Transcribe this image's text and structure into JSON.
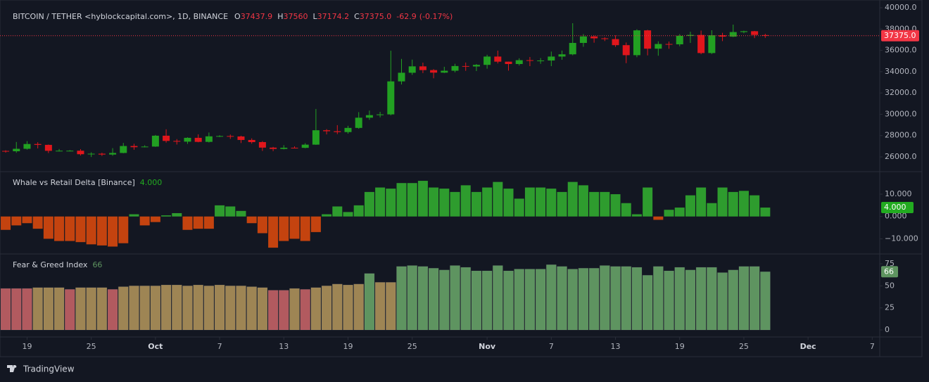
{
  "chart_data": [
    {
      "type": "candlestick",
      "title": "BITCOIN / TETHER <hyblockcapital.com>, 1D, BINANCE",
      "ohlc_letters": [
        "O",
        "H",
        "L",
        "C"
      ],
      "close_label": "37375.0",
      "change": -62.9,
      "change_pct_label": "(-0.17%)",
      "up_color": "#22a022",
      "down_color": "#e0161c",
      "last_color": "#f23645",
      "xlim": [
        -0.53,
        81.7
      ],
      "xticks": [
        {
          "value": 2,
          "label": "19"
        },
        {
          "value": 8,
          "label": "25"
        },
        {
          "value": 14,
          "label": "Oct"
        },
        {
          "value": 20,
          "label": "7"
        },
        {
          "value": 26,
          "label": "13"
        },
        {
          "value": 32,
          "label": "19"
        },
        {
          "value": 38,
          "label": "25"
        },
        {
          "value": 45,
          "label": "Nov"
        },
        {
          "value": 51,
          "label": "7"
        },
        {
          "value": 57,
          "label": "13"
        },
        {
          "value": 63,
          "label": "19"
        },
        {
          "value": 69,
          "label": "25"
        },
        {
          "value": 75,
          "label": "Dec"
        },
        {
          "value": 81,
          "label": "7"
        }
      ],
      "ylim": [
        24680,
        40730
      ],
      "yticks": [
        {
          "value": 40000,
          "label": "40000.0"
        },
        {
          "value": 38000,
          "label": "38000.0"
        },
        {
          "value": 36000,
          "label": "36000.0"
        },
        {
          "value": 34000,
          "label": "34000.0"
        },
        {
          "value": 32000,
          "label": "32000.0"
        },
        {
          "value": 30000,
          "label": "30000.0"
        },
        {
          "value": 28000,
          "label": "28000.0"
        },
        {
          "value": 26000,
          "label": "26000.0"
        }
      ],
      "open": [
        26560,
        26530,
        26760,
        27210,
        27130,
        26570,
        26580,
        26580,
        26250,
        26300,
        26220,
        26370,
        27020,
        26910,
        26970,
        27990,
        27500,
        27430,
        27790,
        27410,
        27930,
        27960,
        27920,
        27590,
        27390,
        26870,
        26750,
        26860,
        26850,
        27150,
        28500,
        28410,
        28330,
        28720,
        29680,
        29920,
        29990,
        33090,
        33900,
        34500,
        34150,
        33910,
        34090,
        34530,
        34490,
        34640,
        35420,
        34940,
        34720,
        35080,
        35040,
        35050,
        35420,
        35630,
        36700,
        37310,
        37130,
        37060,
        36490,
        35550,
        37880,
        36160,
        36600,
        36570,
        37360,
        37450,
        35750,
        37420,
        37290,
        37720,
        37800,
        37437.9
      ],
      "high": [
        26620,
        27400,
        27480,
        27380,
        27160,
        26740,
        26640,
        26730,
        26430,
        26390,
        26820,
        27310,
        27230,
        27090,
        28060,
        28590,
        27670,
        27840,
        28120,
        28290,
        28030,
        28100,
        27990,
        27740,
        27480,
        26940,
        27100,
        26990,
        27290,
        30500,
        28610,
        28980,
        28920,
        30200,
        30350,
        30230,
        35970,
        35200,
        35130,
        34850,
        34240,
        34460,
        34740,
        34860,
        34720,
        35590,
        35980,
        34950,
        35260,
        35380,
        35280,
        35890,
        35980,
        38550,
        37530,
        37400,
        37230,
        37420,
        36740,
        37980,
        37930,
        36850,
        36830,
        37520,
        37750,
        37860,
        37890,
        37650,
        38420,
        37850,
        37830,
        37560
      ],
      "low": [
        26400,
        26390,
        26680,
        26800,
        26360,
        26510,
        26520,
        26130,
        25990,
        26090,
        26110,
        26340,
        26670,
        26890,
        26940,
        27340,
        27160,
        27220,
        27370,
        27350,
        27860,
        27690,
        27300,
        27240,
        26560,
        26540,
        26700,
        26820,
        26810,
        27130,
        28110,
        28140,
        28180,
        28640,
        29480,
        29710,
        29900,
        32800,
        33700,
        33870,
        33380,
        33870,
        33940,
        34080,
        34060,
        34280,
        34770,
        34100,
        34580,
        34520,
        34740,
        34520,
        35120,
        35540,
        36340,
        36720,
        36880,
        36330,
        34800,
        35360,
        35530,
        35500,
        36150,
        36390,
        36700,
        35640,
        35660,
        36870,
        37250,
        37610,
        37150,
        37174.2
      ],
      "close": [
        26530,
        26760,
        27210,
        27130,
        26570,
        26580,
        26580,
        26250,
        26300,
        26220,
        26370,
        27020,
        26910,
        26970,
        27990,
        27500,
        27430,
        27790,
        27410,
        27930,
        27960,
        27920,
        27590,
        27390,
        26870,
        26750,
        26860,
        26850,
        27150,
        28500,
        28410,
        28330,
        28720,
        29680,
        29920,
        29990,
        33090,
        33900,
        34500,
        34150,
        33910,
        34090,
        34530,
        34490,
        34640,
        35420,
        34940,
        34720,
        35080,
        35040,
        35050,
        35420,
        35630,
        36700,
        37310,
        37130,
        37060,
        36490,
        35550,
        37880,
        36160,
        36600,
        36570,
        37360,
        37450,
        35750,
        37420,
        37290,
        37720,
        37800,
        37450,
        37375
      ]
    },
    {
      "type": "bar",
      "title": "Whale vs Retail Delta [Binance]",
      "last_label": "4.000",
      "up_color": "#2e9c2e",
      "down_color": "#c4430f",
      "last_color": "#22ab20",
      "ylim": [
        -16.5,
        19.8
      ],
      "yticks": [
        {
          "value": 10,
          "label": "10.000"
        },
        {
          "value": 0,
          "label": "0.000"
        },
        {
          "value": -10,
          "label": "−10.000"
        }
      ],
      "values": [
        -6,
        -4,
        -3,
        -5.5,
        -10,
        -11,
        -11,
        -11.5,
        -12.5,
        -13,
        -13.5,
        -12,
        1,
        -4,
        -2.5,
        0.5,
        1.5,
        -6,
        -5.5,
        -5.5,
        5,
        4.5,
        2.5,
        -3,
        -7.5,
        -14,
        -11,
        -10,
        -11,
        -7,
        1,
        4.5,
        2,
        5,
        11,
        13,
        12.5,
        15,
        15,
        16,
        13,
        12.5,
        11,
        14,
        11,
        13,
        15.5,
        12.5,
        8,
        13,
        13,
        12.5,
        11,
        15.5,
        14,
        11,
        11,
        10,
        6,
        1,
        13,
        -1.5,
        3,
        4,
        9.5,
        13,
        6,
        13,
        11,
        11.5,
        9.5,
        4
      ]
    },
    {
      "type": "bar",
      "title": "Fear & Greed Index",
      "last_color": "#5e9460",
      "ylim": [
        -7.2,
        85.4
      ],
      "yticks": [
        75,
        50,
        25,
        0
      ],
      "values": [
        47,
        47,
        47,
        48,
        48,
        48,
        46,
        48,
        48,
        48,
        46,
        49,
        50,
        50,
        50,
        51,
        51,
        50,
        51,
        50,
        51,
        50,
        50,
        49,
        48,
        45,
        45,
        47,
        46,
        48,
        50,
        52,
        51,
        52,
        64,
        54,
        54,
        72,
        73,
        72,
        70,
        68,
        73,
        71,
        67,
        67,
        73,
        67,
        69,
        69,
        69,
        74,
        72,
        69,
        70,
        70,
        73,
        72,
        72,
        71,
        62,
        72,
        67,
        71,
        68,
        71,
        71,
        65,
        68,
        72,
        72,
        66
      ],
      "colors": [
        "#b25a5f",
        "#b25a5f",
        "#b25a5f",
        "#9e8554",
        "#9e8554",
        "#9e8554",
        "#b25a5f",
        "#9e8554",
        "#9e8554",
        "#9e8554",
        "#b25a5f",
        "#9e8554",
        "#9e8554",
        "#9e8554",
        "#9e8554",
        "#9e8554",
        "#9e8554",
        "#9e8554",
        "#9e8554",
        "#9e8554",
        "#9e8554",
        "#9e8554",
        "#9e8554",
        "#9e8554",
        "#9e8554",
        "#b25a5f",
        "#b25a5f",
        "#9e8554",
        "#b25a5f",
        "#9e8554",
        "#9e8554",
        "#9e8554",
        "#9e8554",
        "#9e8554",
        "#5e9460",
        "#9e8554",
        "#9e8554",
        "#5e9460",
        "#5e9460",
        "#5e9460",
        "#5e9460",
        "#5e9460",
        "#5e9460",
        "#5e9460",
        "#5e9460",
        "#5e9460",
        "#5e9460",
        "#5e9460",
        "#5e9460",
        "#5e9460",
        "#5e9460",
        "#5e9460",
        "#5e9460",
        "#5e9460",
        "#5e9460",
        "#5e9460",
        "#5e9460",
        "#5e9460",
        "#5e9460",
        "#5e9460",
        "#5e9460",
        "#5e9460",
        "#5e9460",
        "#5e9460",
        "#5e9460",
        "#5e9460",
        "#5e9460",
        "#5e9460",
        "#5e9460",
        "#5e9460",
        "#5e9460",
        "#5e9460"
      ]
    }
  ],
  "footer": {
    "brand": "TradingView"
  }
}
